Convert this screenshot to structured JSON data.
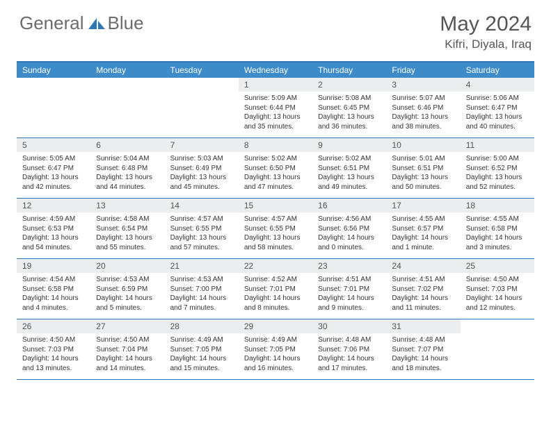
{
  "brand": {
    "name1": "General",
    "name2": "Blue"
  },
  "title": "May 2024",
  "location": "Kifri, Diyala, Iraq",
  "colors": {
    "header_bg": "#3d8bc9",
    "border": "#2d77b6",
    "daynum_bg": "#ebedef",
    "text": "#333333",
    "title_text": "#555555"
  },
  "dayNames": [
    "Sunday",
    "Monday",
    "Tuesday",
    "Wednesday",
    "Thursday",
    "Friday",
    "Saturday"
  ],
  "weeks": [
    [
      null,
      null,
      null,
      {
        "n": "1",
        "sr": "5:09 AM",
        "ss": "6:44 PM",
        "dl": "13 hours and 35 minutes."
      },
      {
        "n": "2",
        "sr": "5:08 AM",
        "ss": "6:45 PM",
        "dl": "13 hours and 36 minutes."
      },
      {
        "n": "3",
        "sr": "5:07 AM",
        "ss": "6:46 PM",
        "dl": "13 hours and 38 minutes."
      },
      {
        "n": "4",
        "sr": "5:06 AM",
        "ss": "6:47 PM",
        "dl": "13 hours and 40 minutes."
      }
    ],
    [
      {
        "n": "5",
        "sr": "5:05 AM",
        "ss": "6:47 PM",
        "dl": "13 hours and 42 minutes."
      },
      {
        "n": "6",
        "sr": "5:04 AM",
        "ss": "6:48 PM",
        "dl": "13 hours and 44 minutes."
      },
      {
        "n": "7",
        "sr": "5:03 AM",
        "ss": "6:49 PM",
        "dl": "13 hours and 45 minutes."
      },
      {
        "n": "8",
        "sr": "5:02 AM",
        "ss": "6:50 PM",
        "dl": "13 hours and 47 minutes."
      },
      {
        "n": "9",
        "sr": "5:02 AM",
        "ss": "6:51 PM",
        "dl": "13 hours and 49 minutes."
      },
      {
        "n": "10",
        "sr": "5:01 AM",
        "ss": "6:51 PM",
        "dl": "13 hours and 50 minutes."
      },
      {
        "n": "11",
        "sr": "5:00 AM",
        "ss": "6:52 PM",
        "dl": "13 hours and 52 minutes."
      }
    ],
    [
      {
        "n": "12",
        "sr": "4:59 AM",
        "ss": "6:53 PM",
        "dl": "13 hours and 54 minutes."
      },
      {
        "n": "13",
        "sr": "4:58 AM",
        "ss": "6:54 PM",
        "dl": "13 hours and 55 minutes."
      },
      {
        "n": "14",
        "sr": "4:57 AM",
        "ss": "6:55 PM",
        "dl": "13 hours and 57 minutes."
      },
      {
        "n": "15",
        "sr": "4:57 AM",
        "ss": "6:55 PM",
        "dl": "13 hours and 58 minutes."
      },
      {
        "n": "16",
        "sr": "4:56 AM",
        "ss": "6:56 PM",
        "dl": "14 hours and 0 minutes."
      },
      {
        "n": "17",
        "sr": "4:55 AM",
        "ss": "6:57 PM",
        "dl": "14 hours and 1 minute."
      },
      {
        "n": "18",
        "sr": "4:55 AM",
        "ss": "6:58 PM",
        "dl": "14 hours and 3 minutes."
      }
    ],
    [
      {
        "n": "19",
        "sr": "4:54 AM",
        "ss": "6:58 PM",
        "dl": "14 hours and 4 minutes."
      },
      {
        "n": "20",
        "sr": "4:53 AM",
        "ss": "6:59 PM",
        "dl": "14 hours and 5 minutes."
      },
      {
        "n": "21",
        "sr": "4:53 AM",
        "ss": "7:00 PM",
        "dl": "14 hours and 7 minutes."
      },
      {
        "n": "22",
        "sr": "4:52 AM",
        "ss": "7:01 PM",
        "dl": "14 hours and 8 minutes."
      },
      {
        "n": "23",
        "sr": "4:51 AM",
        "ss": "7:01 PM",
        "dl": "14 hours and 9 minutes."
      },
      {
        "n": "24",
        "sr": "4:51 AM",
        "ss": "7:02 PM",
        "dl": "14 hours and 11 minutes."
      },
      {
        "n": "25",
        "sr": "4:50 AM",
        "ss": "7:03 PM",
        "dl": "14 hours and 12 minutes."
      }
    ],
    [
      {
        "n": "26",
        "sr": "4:50 AM",
        "ss": "7:03 PM",
        "dl": "14 hours and 13 minutes."
      },
      {
        "n": "27",
        "sr": "4:50 AM",
        "ss": "7:04 PM",
        "dl": "14 hours and 14 minutes."
      },
      {
        "n": "28",
        "sr": "4:49 AM",
        "ss": "7:05 PM",
        "dl": "14 hours and 15 minutes."
      },
      {
        "n": "29",
        "sr": "4:49 AM",
        "ss": "7:05 PM",
        "dl": "14 hours and 16 minutes."
      },
      {
        "n": "30",
        "sr": "4:48 AM",
        "ss": "7:06 PM",
        "dl": "14 hours and 17 minutes."
      },
      {
        "n": "31",
        "sr": "4:48 AM",
        "ss": "7:07 PM",
        "dl": "14 hours and 18 minutes."
      },
      null
    ]
  ],
  "labels": {
    "sunrise": "Sunrise:",
    "sunset": "Sunset:",
    "daylight": "Daylight:"
  }
}
